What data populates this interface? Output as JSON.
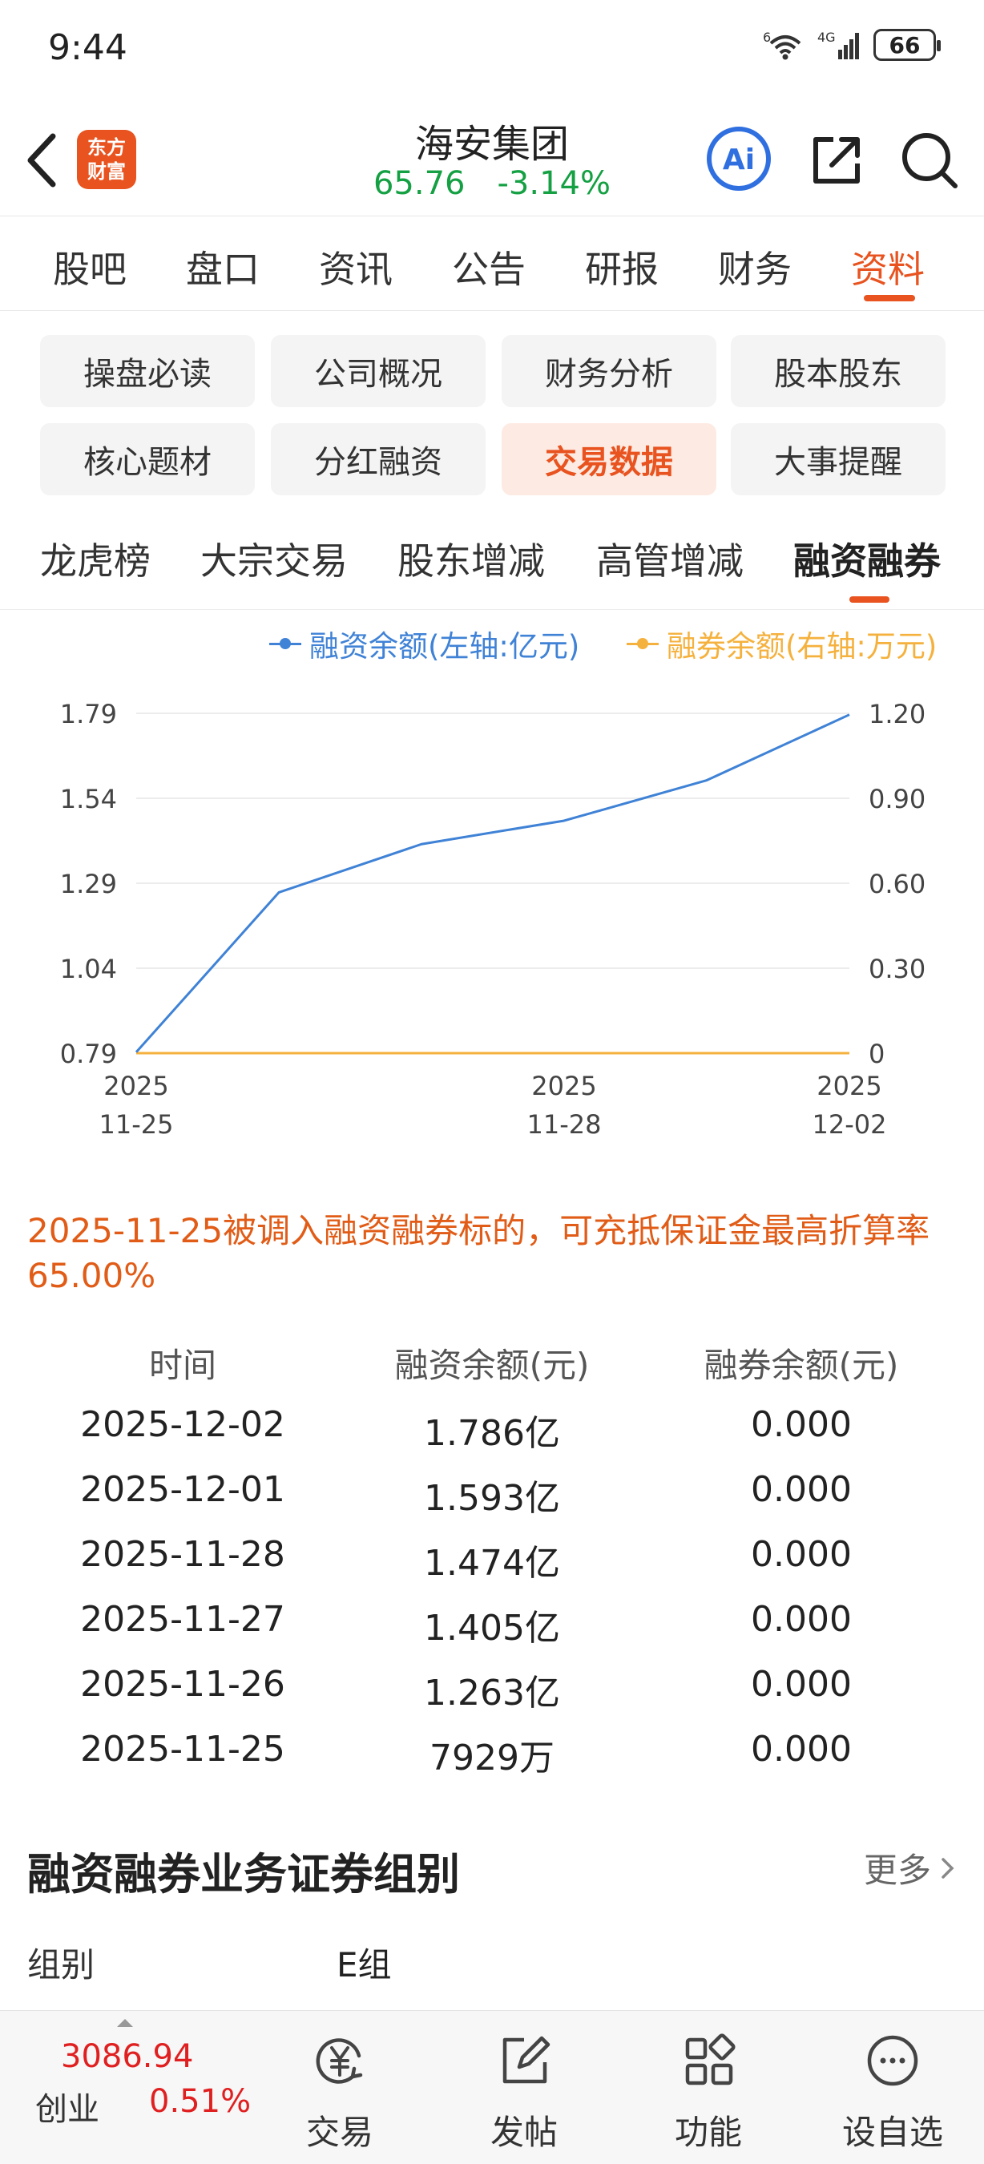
{
  "status_bar": {
    "time": "9:44",
    "battery": "66"
  },
  "header": {
    "logo": "东方\n财富",
    "title": "海安集团",
    "price": "65.76",
    "change": "-3.14%"
  },
  "main_tabs": [
    "股吧",
    "盘口",
    "资讯",
    "公告",
    "研报",
    "财务",
    "资料"
  ],
  "buttons": [
    "操盘必读",
    "公司概况",
    "财务分析",
    "股本股东",
    "核心题材",
    "分红融资",
    "交易数据",
    "大事提醒"
  ],
  "sub_tabs": [
    "龙虎榜",
    "大宗交易",
    "股东增减",
    "高管增减",
    "融资融券"
  ],
  "chart_data": {
    "type": "line",
    "title": "",
    "x": [
      "2025-11-25",
      "2025-11-26",
      "2025-11-27",
      "2025-11-28",
      "2025-12-01",
      "2025-12-02"
    ],
    "x_tick_labels": [
      {
        "year": "2025",
        "date": "11-25"
      },
      {
        "year": "2025",
        "date": "11-28"
      },
      {
        "year": "2025",
        "date": "12-02"
      }
    ],
    "series": [
      {
        "name": "融资余额(左轴:亿元)",
        "axis": "left",
        "values": [
          0.7929,
          1.263,
          1.405,
          1.474,
          1.593,
          1.786
        ]
      },
      {
        "name": "融券余额(右轴:万元)",
        "axis": "right",
        "values": [
          0,
          0,
          0,
          0,
          0,
          0
        ]
      }
    ],
    "left_ticks": [
      "1.79",
      "1.54",
      "1.29",
      "1.04",
      "0.79"
    ],
    "right_ticks": [
      "1.20",
      "0.90",
      "0.60",
      "0.30",
      "0"
    ],
    "ylim_left": [
      0.79,
      1.79
    ],
    "ylim_right": [
      0,
      1.2
    ],
    "grid": true,
    "legend_position": "top-right",
    "colors": {
      "financing": "#3f82d6",
      "securities": "#f5b13d"
    }
  },
  "notice": "2025-11-25被调入融资融券标的，可充抵保证金最高折算率65.00%",
  "table": {
    "headers": [
      "时间",
      "融资余额(元)",
      "融券余额(元)"
    ],
    "rows": [
      [
        "2025-12-02",
        "1.786亿",
        "0.000"
      ],
      [
        "2025-12-01",
        "1.593亿",
        "0.000"
      ],
      [
        "2025-11-28",
        "1.474亿",
        "0.000"
      ],
      [
        "2025-11-27",
        "1.405亿",
        "0.000"
      ],
      [
        "2025-11-26",
        "1.263亿",
        "0.000"
      ],
      [
        "2025-11-25",
        "7929万",
        "0.000"
      ]
    ]
  },
  "group_section": {
    "title": "融资融券业务证券组别",
    "more": "更多",
    "label": "组别",
    "value": "E组"
  },
  "bottom_bar": {
    "index_value": "3086.94",
    "index_name": "创业",
    "index_change": "0.51%",
    "items": [
      "交易",
      "发帖",
      "功能",
      "设自选"
    ]
  },
  "colors": {
    "accent": "#e8531f",
    "up": "#e02020",
    "down": "#14a043"
  }
}
